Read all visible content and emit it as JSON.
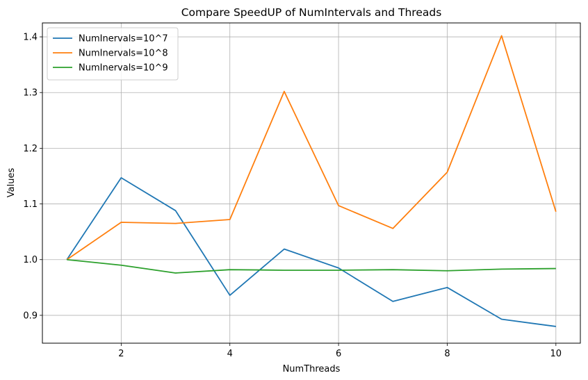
{
  "chart_data": {
    "type": "line",
    "title": "Compare SpeedUP of NumIntervals and Threads",
    "xlabel": "NumThreads",
    "ylabel": "Values",
    "x": [
      1,
      2,
      3,
      4,
      5,
      6,
      7,
      8,
      9,
      10
    ],
    "xlim": [
      0.55,
      10.45
    ],
    "ylim": [
      0.85,
      1.425
    ],
    "xticks": [
      2,
      4,
      6,
      8,
      10
    ],
    "yticks": [
      0.9,
      1.0,
      1.1,
      1.2,
      1.3,
      1.4
    ],
    "xtick_labels": [
      "2",
      "4",
      "6",
      "8",
      "10"
    ],
    "ytick_labels": [
      "0.9",
      "1.0",
      "1.1",
      "1.2",
      "1.3",
      "1.4"
    ],
    "grid": true,
    "legend_position": "top-left",
    "series": [
      {
        "name": "NumInervals=10^7",
        "color": "#1f77b4",
        "values": [
          1.0,
          1.147,
          1.088,
          0.936,
          1.019,
          0.985,
          0.925,
          0.95,
          0.893,
          0.88
        ]
      },
      {
        "name": "NumInervals=10^8",
        "color": "#ff7f0e",
        "values": [
          1.0,
          1.067,
          1.065,
          1.072,
          1.302,
          1.097,
          1.056,
          1.157,
          1.402,
          1.086
        ]
      },
      {
        "name": "NumInervals=10^9",
        "color": "#2ca02c",
        "values": [
          1.0,
          0.99,
          0.976,
          0.982,
          0.981,
          0.981,
          0.982,
          0.98,
          0.983,
          0.984
        ]
      }
    ]
  }
}
